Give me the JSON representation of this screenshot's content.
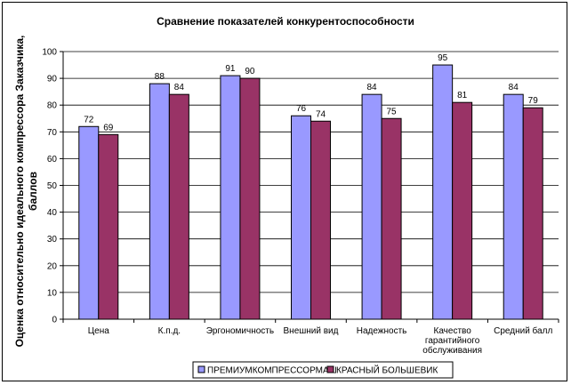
{
  "chart_data": {
    "type": "bar",
    "title": "Сравнение показателей конкурентоспособности",
    "xlabel": "",
    "ylabel": "Оценка относительно идеального компрессора Заказчика, баллов",
    "ylim": [
      0,
      100
    ],
    "yticks": [
      0,
      10,
      20,
      30,
      40,
      50,
      60,
      70,
      80,
      90,
      100
    ],
    "grid": true,
    "legend_position": "bottom",
    "categories": [
      [
        "Цена"
      ],
      [
        "К.п.д."
      ],
      [
        "Эргономичность"
      ],
      [
        "Внешний вид"
      ],
      [
        "Надежность"
      ],
      [
        "Качество",
        "гарантийного",
        "обслуживания"
      ],
      [
        "Средний балл"
      ]
    ],
    "series": [
      {
        "name": "ПРЕМИУМКОМПРЕССОРМАШ",
        "color": "#9999FF",
        "values": [
          72,
          88,
          91,
          76,
          84,
          95,
          84
        ]
      },
      {
        "name": "КРАСНЫЙ БОЛЬШЕВИК",
        "color": "#993366",
        "values": [
          69,
          84,
          90,
          74,
          75,
          81,
          79
        ]
      }
    ]
  }
}
